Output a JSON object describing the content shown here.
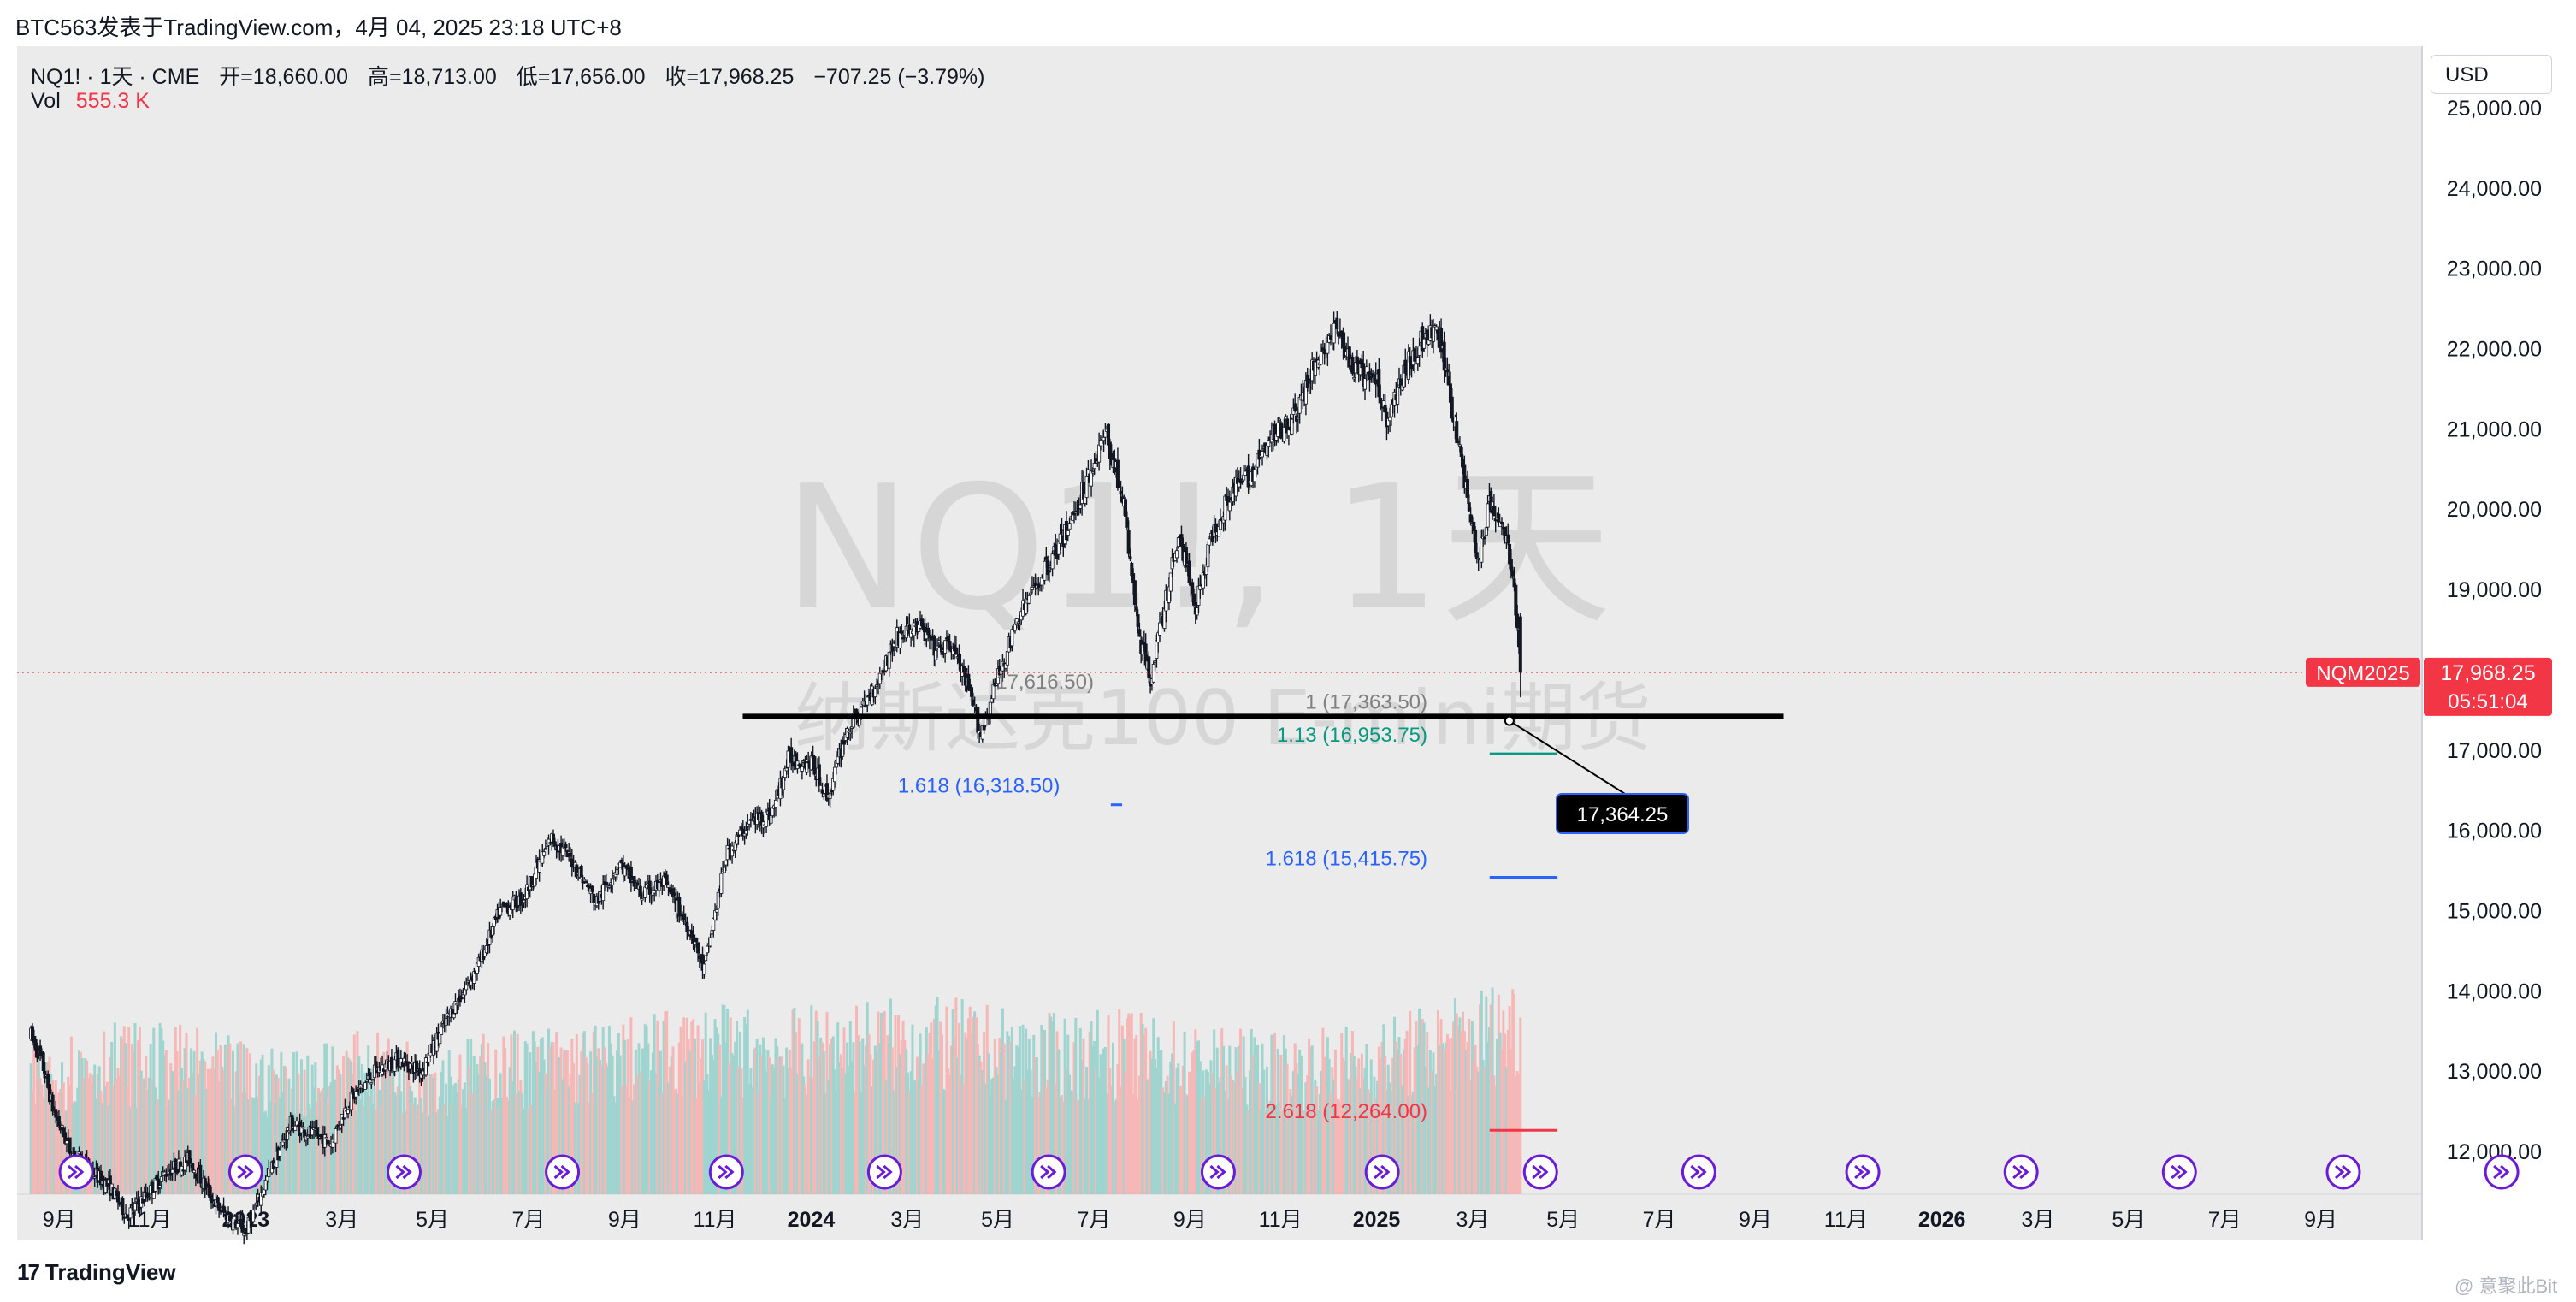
{
  "header": {
    "publisher": "BTC563发表于TradingView.com，4月 04, 2025 23:18 UTC+8",
    "symbol_line": "NQ1! · 1天 · CME",
    "open": "开=18,660.00",
    "high": "高=18,713.00",
    "low": "低=17,656.00",
    "close": "收=17,968.25",
    "change": "−707.25 (−3.79%)",
    "vol_label": "Vol",
    "vol_value": "555.3 K"
  },
  "currency_button": "USD",
  "watermark": {
    "symbol": "NQ1!, 1天",
    "name": "纳斯达克100 E-mini期货"
  },
  "footer": {
    "logo_glyph": "17",
    "logo_text": "TradingView",
    "corner_mark": "@ 意聚此Bit"
  },
  "colors": {
    "background": "#ebebeb",
    "candle": "#131722",
    "volume_up": "#9fd4cf",
    "volume_down": "#f6b7b7",
    "price_badge": "#f23645",
    "fib_gray": "#808080",
    "fib_teal": "#089981",
    "fib_blue": "#2962ff",
    "fib_red": "#f23645",
    "event_icon": "#6a1bd9"
  },
  "chart_data": {
    "type": "candlestick",
    "symbol": "NQ1!",
    "timeframe": "1天",
    "exchange": "CME",
    "y_axis": {
      "range": [
        11600,
        25300
      ],
      "ticks": [
        "25,000.00",
        "24,000.00",
        "23,000.00",
        "22,000.00",
        "21,000.00",
        "20,000.00",
        "19,000.00",
        "18,000.00",
        "17,000.00",
        "16,000.00",
        "15,000.00",
        "14,000.00",
        "13,000.00",
        "12,000.00"
      ]
    },
    "x_axis": {
      "ticks": [
        {
          "label": "9月",
          "x": 2022.67
        },
        {
          "label": "11月",
          "x": 2022.83
        },
        {
          "label": "2023",
          "x": 2023.0,
          "bold": true
        },
        {
          "label": "3月",
          "x": 2023.17
        },
        {
          "label": "5月",
          "x": 2023.33
        },
        {
          "label": "7月",
          "x": 2023.5
        },
        {
          "label": "9月",
          "x": 2023.67
        },
        {
          "label": "11月",
          "x": 2023.83
        },
        {
          "label": "2024",
          "x": 2024.0,
          "bold": true
        },
        {
          "label": "3月",
          "x": 2024.17
        },
        {
          "label": "5月",
          "x": 2024.33
        },
        {
          "label": "7月",
          "x": 2024.5
        },
        {
          "label": "9月",
          "x": 2024.67
        },
        {
          "label": "11月",
          "x": 2024.83
        },
        {
          "label": "2025",
          "x": 2025.0,
          "bold": true
        },
        {
          "label": "3月",
          "x": 2025.17
        },
        {
          "label": "5月",
          "x": 2025.33
        },
        {
          "label": "7月",
          "x": 2025.5
        },
        {
          "label": "9月",
          "x": 2025.67
        },
        {
          "label": "11月",
          "x": 2025.83
        },
        {
          "label": "2026",
          "x": 2026.0,
          "bold": true
        },
        {
          "label": "3月",
          "x": 2026.17
        },
        {
          "label": "5月",
          "x": 2026.33
        },
        {
          "label": "7月",
          "x": 2026.5
        },
        {
          "label": "9月",
          "x": 2026.67
        }
      ]
    },
    "price_path": [
      [
        2022.62,
        13450
      ],
      [
        2022.64,
        13100
      ],
      [
        2022.66,
        12500
      ],
      [
        2022.69,
        12000
      ],
      [
        2022.72,
        11800
      ],
      [
        2022.76,
        11550
      ],
      [
        2022.79,
        11200
      ],
      [
        2022.83,
        11500
      ],
      [
        2022.86,
        11750
      ],
      [
        2022.9,
        11900
      ],
      [
        2022.95,
        11300
      ],
      [
        2023.0,
        11000
      ],
      [
        2023.04,
        11700
      ],
      [
        2023.08,
        12350
      ],
      [
        2023.12,
        12200
      ],
      [
        2023.15,
        12100
      ],
      [
        2023.18,
        12600
      ],
      [
        2023.23,
        13000
      ],
      [
        2023.27,
        13150
      ],
      [
        2023.31,
        13000
      ],
      [
        2023.36,
        13700
      ],
      [
        2023.41,
        14300
      ],
      [
        2023.45,
        15000
      ],
      [
        2023.49,
        15150
      ],
      [
        2023.54,
        15900
      ],
      [
        2023.58,
        15600
      ],
      [
        2023.62,
        15100
      ],
      [
        2023.66,
        15600
      ],
      [
        2023.7,
        15200
      ],
      [
        2023.74,
        15350
      ],
      [
        2023.79,
        14700
      ],
      [
        2023.81,
        14250
      ],
      [
        2023.85,
        15700
      ],
      [
        2023.89,
        16100
      ],
      [
        2023.93,
        16200
      ],
      [
        2023.96,
        16900
      ],
      [
        2024.0,
        16850
      ],
      [
        2024.03,
        16400
      ],
      [
        2024.06,
        17200
      ],
      [
        2024.09,
        17500
      ],
      [
        2024.12,
        17900
      ],
      [
        2024.15,
        18400
      ],
      [
        2024.19,
        18550
      ],
      [
        2024.22,
        18250
      ],
      [
        2024.25,
        18300
      ],
      [
        2024.28,
        17700
      ],
      [
        2024.3,
        17200
      ],
      [
        2024.33,
        17900
      ],
      [
        2024.37,
        18700
      ],
      [
        2024.41,
        19200
      ],
      [
        2024.45,
        19700
      ],
      [
        2024.49,
        20400
      ],
      [
        2024.52,
        20950
      ],
      [
        2024.55,
        20200
      ],
      [
        2024.58,
        18400
      ],
      [
        2024.6,
        17900
      ],
      [
        2024.62,
        18600
      ],
      [
        2024.65,
        19700
      ],
      [
        2024.68,
        18800
      ],
      [
        2024.71,
        19700
      ],
      [
        2024.74,
        20200
      ],
      [
        2024.78,
        20450
      ],
      [
        2024.82,
        20950
      ],
      [
        2024.86,
        21200
      ],
      [
        2024.89,
        21800
      ],
      [
        2024.93,
        22250
      ],
      [
        2024.96,
        21700
      ],
      [
        2025.0,
        21600
      ],
      [
        2025.02,
        21100
      ],
      [
        2025.05,
        21750
      ],
      [
        2025.08,
        22100
      ],
      [
        2025.11,
        22200
      ],
      [
        2025.13,
        21400
      ],
      [
        2025.16,
        20200
      ],
      [
        2025.18,
        19300
      ],
      [
        2025.2,
        20100
      ],
      [
        2025.22,
        19800
      ],
      [
        2025.24,
        19300
      ],
      [
        2025.255,
        17968
      ]
    ],
    "volume_profile": [
      [
        2022.62,
        0.55
      ],
      [
        2022.75,
        0.62
      ],
      [
        2022.9,
        0.6
      ],
      [
        2023.05,
        0.52
      ],
      [
        2023.2,
        0.58
      ],
      [
        2023.35,
        0.55
      ],
      [
        2023.5,
        0.6
      ],
      [
        2023.65,
        0.62
      ],
      [
        2023.8,
        0.68
      ],
      [
        2023.95,
        0.66
      ],
      [
        2024.1,
        0.7
      ],
      [
        2024.25,
        0.7
      ],
      [
        2024.4,
        0.64
      ],
      [
        2024.55,
        0.66
      ],
      [
        2024.7,
        0.6
      ],
      [
        2024.85,
        0.58
      ],
      [
        2025.0,
        0.62
      ],
      [
        2025.15,
        0.72
      ],
      [
        2025.255,
        0.8
      ]
    ],
    "last_price": "17,968.25",
    "last_price_value": 17968.25,
    "contract_label": "NQM2025",
    "countdown": "05:51:04",
    "support_line": {
      "value": 17420,
      "x_start": 2024.0,
      "x_end": 2025.72
    },
    "callout": {
      "label": "17,364.25",
      "anchor": [
        2025.235,
        17364.25
      ]
    },
    "fib_levels": [
      {
        "label": "17,616.50)",
        "value": 17616.5,
        "x": 2024.5,
        "color": "gray"
      },
      {
        "label": "1 (17,363.50)",
        "value": 17363.5,
        "x": 2025.09,
        "color": "gray"
      },
      {
        "label": "1.13 (16,953.75)",
        "value": 16953.75,
        "x": 2025.09,
        "color": "teal",
        "line": [
          2025.2,
          2025.32
        ]
      },
      {
        "label": "1.618 (16,318.50)",
        "value": 16318.5,
        "x": 2024.44,
        "color": "blue",
        "line": [
          2024.53,
          2024.55
        ]
      },
      {
        "label": "1.618 (15,415.75)",
        "value": 15415.75,
        "x": 2025.09,
        "color": "blue",
        "line": [
          2025.2,
          2025.32
        ]
      },
      {
        "label": "2.618 (12,264.00)",
        "value": 12264.0,
        "x": 2025.09,
        "color": "red",
        "line": [
          2025.2,
          2025.32
        ]
      }
    ],
    "event_markers": [
      2022.7,
      2023.0,
      2023.28,
      2023.56,
      2023.85,
      2024.13,
      2024.42,
      2024.72,
      2025.01,
      2025.29,
      2025.57,
      2025.86,
      2026.14,
      2026.42,
      2026.71,
      2026.99
    ]
  }
}
